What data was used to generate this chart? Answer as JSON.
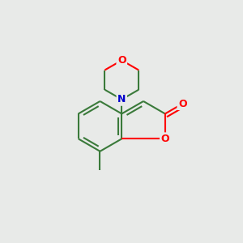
{
  "background_color": "#e8eae8",
  "bond_color": "#3a7a3a",
  "atom_colors": {
    "O": "#ff0000",
    "N": "#0000cc"
  },
  "line_width": 1.5,
  "dbo": 0.15
}
